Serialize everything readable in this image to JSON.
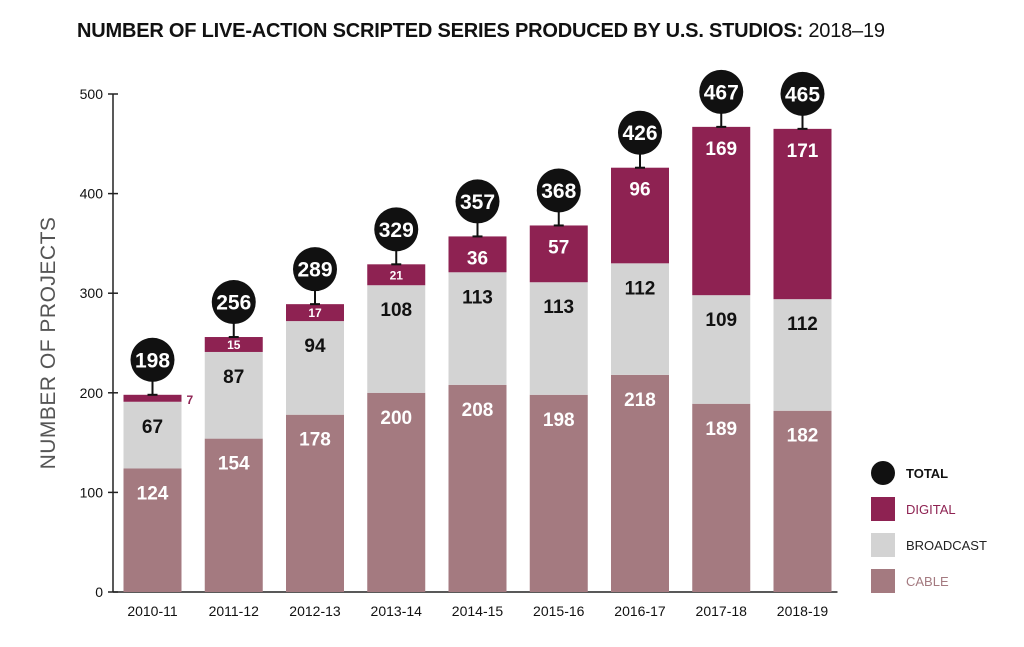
{
  "title": {
    "main": "NUMBER OF LIVE-ACTION SCRIPTED SERIES PRODUCED BY U.S. STUDIOS:",
    "sub": "2018–19"
  },
  "colors": {
    "cable": "#a47a80",
    "broadcast": "#d3d3d3",
    "digital": "#8e2252",
    "total": "#111111"
  },
  "chart_data": {
    "type": "bar",
    "stacked": true,
    "title": "NUMBER OF LIVE-ACTION SCRIPTED SERIES PRODUCED BY U.S. STUDIOS: 2018–19",
    "xlabel": "",
    "ylabel": "NUMBER OF PROJECTS",
    "ylim": [
      0,
      500
    ],
    "yticks": [
      0,
      100,
      200,
      300,
      400,
      500
    ],
    "categories": [
      "2010-11",
      "2011-12",
      "2012-13",
      "2013-14",
      "2014-15",
      "2015-16",
      "2016-17",
      "2017-18",
      "2018-19"
    ],
    "series": [
      {
        "name": "CABLE",
        "values": [
          124,
          154,
          178,
          200,
          208,
          198,
          218,
          189,
          182
        ]
      },
      {
        "name": "BROADCAST",
        "values": [
          67,
          87,
          94,
          108,
          113,
          113,
          112,
          109,
          112
        ]
      },
      {
        "name": "DIGITAL",
        "values": [
          7,
          15,
          17,
          21,
          36,
          57,
          96,
          169,
          171
        ]
      }
    ],
    "totals": [
      198,
      256,
      289,
      329,
      357,
      368,
      426,
      467,
      465
    ],
    "grid": false,
    "legend": {
      "placement": "bottom-right",
      "entries": [
        "TOTAL",
        "DIGITAL",
        "BROADCAST",
        "CABLE"
      ]
    }
  }
}
